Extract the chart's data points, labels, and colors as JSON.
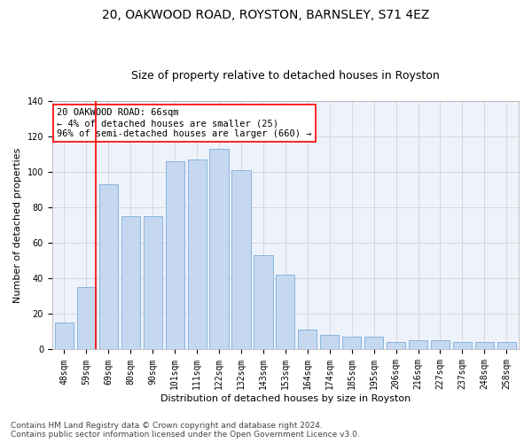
{
  "title": "20, OAKWOOD ROAD, ROYSTON, BARNSLEY, S71 4EZ",
  "subtitle": "Size of property relative to detached houses in Royston",
  "xlabel": "Distribution of detached houses by size in Royston",
  "ylabel": "Number of detached properties",
  "categories": [
    "48sqm",
    "59sqm",
    "69sqm",
    "80sqm",
    "90sqm",
    "101sqm",
    "111sqm",
    "122sqm",
    "132sqm",
    "143sqm",
    "153sqm",
    "164sqm",
    "174sqm",
    "185sqm",
    "195sqm",
    "206sqm",
    "216sqm",
    "227sqm",
    "237sqm",
    "248sqm",
    "258sqm"
  ],
  "values": [
    15,
    35,
    93,
    75,
    75,
    106,
    107,
    113,
    101,
    53,
    42,
    11,
    8,
    7,
    7,
    4,
    5,
    5,
    4,
    4,
    4
  ],
  "bar_color": "#c5d8f0",
  "bar_edge_color": "#7aaedb",
  "grid_color": "#cccccc",
  "background_color": "#eef2fb",
  "annotation_box_text": "20 OAKWOOD ROAD: 66sqm\n← 4% of detached houses are smaller (25)\n96% of semi-detached houses are larger (660) →",
  "annotation_box_color": "white",
  "annotation_box_edge_color": "red",
  "vline_color": "red",
  "vline_x": 1.425,
  "ylim": [
    0,
    140
  ],
  "yticks": [
    0,
    20,
    40,
    60,
    80,
    100,
    120,
    140
  ],
  "footer_line1": "Contains HM Land Registry data © Crown copyright and database right 2024.",
  "footer_line2": "Contains public sector information licensed under the Open Government Licence v3.0.",
  "title_fontsize": 10,
  "subtitle_fontsize": 9,
  "axis_label_fontsize": 8,
  "tick_fontsize": 7,
  "footer_fontsize": 6.5,
  "annot_fontsize": 7.5
}
